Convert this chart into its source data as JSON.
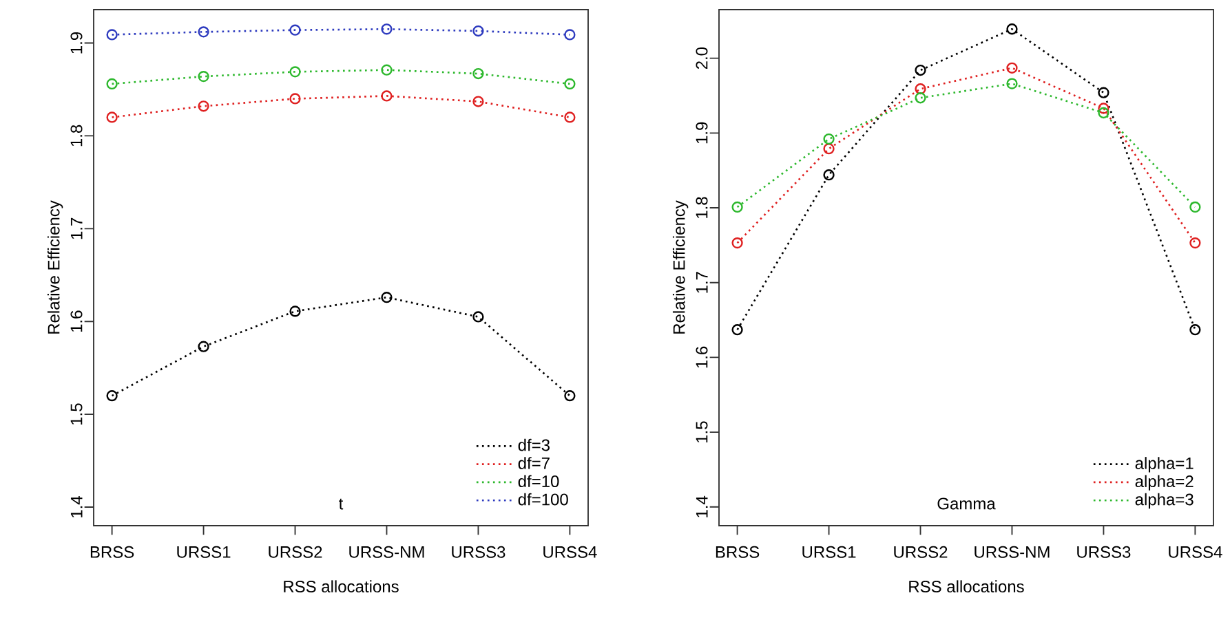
{
  "chart_data": [
    {
      "type": "line",
      "categories": [
        "BRSS",
        "URSS1",
        "URSS2",
        "URSS-NM",
        "URSS3",
        "URSS4"
      ],
      "xlabel": "RSS allocations",
      "ylabel": "Relative Efficiency",
      "annotations": [
        "t"
      ],
      "ylim": [
        1.38,
        1.936
      ],
      "yticks": [
        1.4,
        1.5,
        1.6,
        1.7,
        1.8,
        1.9
      ],
      "legend": "bottom right",
      "marker": "circle",
      "line_style": "dotted",
      "series": [
        {
          "name": "df=3",
          "color": "#000000",
          "values": [
            1.52,
            1.573,
            1.611,
            1.626,
            1.605,
            1.52
          ]
        },
        {
          "name": "df=7",
          "color": "#df2020",
          "values": [
            1.82,
            1.832,
            1.84,
            1.843,
            1.837,
            1.82
          ]
        },
        {
          "name": "df=10",
          "color": "#2db82d",
          "values": [
            1.856,
            1.864,
            1.869,
            1.871,
            1.867,
            1.856
          ]
        },
        {
          "name": "df=100",
          "color": "#2e3bbf",
          "values": [
            1.909,
            1.912,
            1.914,
            1.915,
            1.913,
            1.909
          ]
        }
      ]
    },
    {
      "type": "line",
      "categories": [
        "BRSS",
        "URSS1",
        "URSS2",
        "URSS-NM",
        "URSS3",
        "URSS4"
      ],
      "xlabel": "RSS allocations",
      "ylabel": "Relative Efficiency",
      "annotations": [
        "Gamma"
      ],
      "ylim": [
        1.375,
        2.065
      ],
      "yticks": [
        1.4,
        1.5,
        1.6,
        1.7,
        1.8,
        1.9,
        {
          "value": 2.0,
          "label": "2.0"
        }
      ],
      "legend": "bottom right",
      "marker": "circle",
      "line_style": "dotted",
      "series": [
        {
          "name": "alpha=1",
          "color": "#000000",
          "values": [
            1.637,
            1.844,
            1.984,
            2.039,
            1.954,
            1.637
          ]
        },
        {
          "name": "alpha=2",
          "color": "#df2020",
          "values": [
            1.753,
            1.879,
            1.959,
            1.987,
            1.933,
            1.753
          ]
        },
        {
          "name": "alpha=3",
          "color": "#2db82d",
          "values": [
            1.801,
            1.892,
            1.947,
            1.966,
            1.927,
            1.801
          ]
        }
      ]
    }
  ]
}
